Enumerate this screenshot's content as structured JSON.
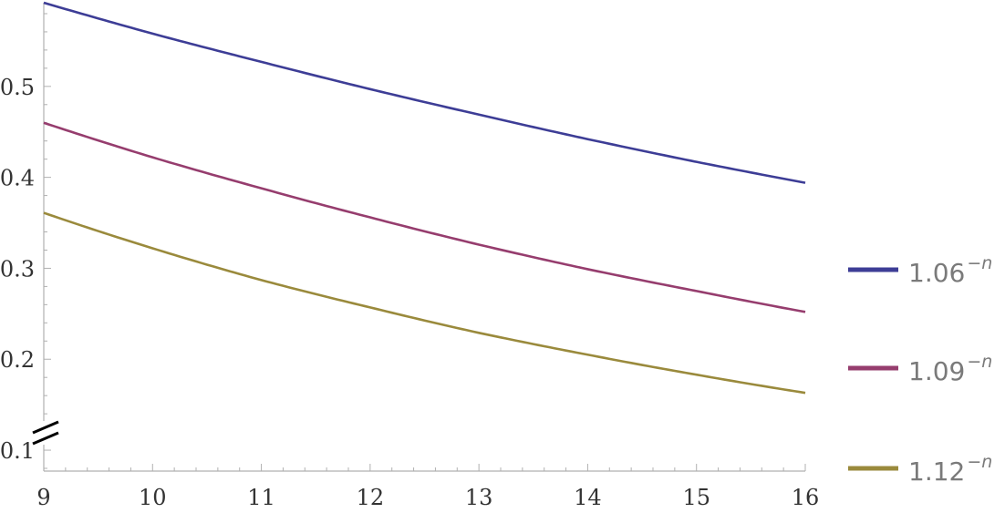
{
  "chart_data": {
    "type": "line",
    "title": "",
    "xlabel": "",
    "ylabel": "",
    "xlim": [
      9,
      16
    ],
    "ylim": [
      0.1,
      0.59
    ],
    "x_ticks": [
      9,
      10,
      11,
      12,
      13,
      14,
      15,
      16
    ],
    "y_ticks": [
      0.1,
      0.2,
      0.3,
      0.4,
      0.5
    ],
    "x_tick_labels": [
      "9",
      "10",
      "11",
      "12",
      "13",
      "14",
      "15",
      "16"
    ],
    "y_tick_labels": [
      "0.1",
      "0.2",
      "0.3",
      "0.4",
      "0.5"
    ],
    "axis_break": "y",
    "grid": false,
    "legend_position": "right",
    "x": [
      9,
      10,
      11,
      12,
      13,
      14,
      15,
      16
    ],
    "series": [
      {
        "name": "1.06^-n",
        "label_base": "1.06",
        "label_exp": "−n",
        "color": "#3d3d96",
        "values": [
          0.592,
          0.558,
          0.527,
          0.497,
          0.469,
          0.442,
          0.417,
          0.394
        ]
      },
      {
        "name": "1.09^-n",
        "label_base": "1.09",
        "label_exp": "−n",
        "color": "#963d6e",
        "values": [
          0.46,
          0.422,
          0.388,
          0.356,
          0.326,
          0.299,
          0.275,
          0.252
        ]
      },
      {
        "name": "1.12^-n",
        "label_base": "1.12",
        "label_exp": "−n",
        "color": "#9a8a3c",
        "values": [
          0.361,
          0.322,
          0.287,
          0.257,
          0.229,
          0.205,
          0.183,
          0.163
        ]
      }
    ]
  }
}
